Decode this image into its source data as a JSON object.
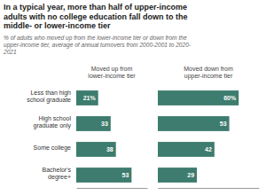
{
  "chart_data": {
    "type": "bar",
    "orientation": "horizontal",
    "title": "In a typical year, more than half of upper-income\nadults with no college education fall down to the\nmiddle- or lower-income tier",
    "subtitle": "% of adults who moved up from the lower-income tier or down from the\nupper-income tier, average of annual turnovers from 2000-2001 to 2020-\n2021",
    "categories": [
      "Less than high\nschool graduate",
      "High school\ngraduate only",
      "Some college",
      "Bachelor's\ndegree+"
    ],
    "series": [
      {
        "name": "Moved up from\nlower-income tier",
        "color": "#3d7c6e",
        "values": [
          21,
          33,
          38,
          53
        ],
        "value_labels": [
          "21%",
          "33",
          "38",
          "53"
        ],
        "xlim": [
          0,
          68
        ]
      },
      {
        "name": "Moved down from\nupper-income tier",
        "color": "#3d7c6e",
        "values": [
          60,
          53,
          42,
          29
        ],
        "value_labels": [
          "60%",
          "53",
          "42",
          "29"
        ],
        "xlim": [
          0,
          75
        ]
      }
    ],
    "data_labels": true,
    "tick_labels": "y",
    "grid": false
  }
}
